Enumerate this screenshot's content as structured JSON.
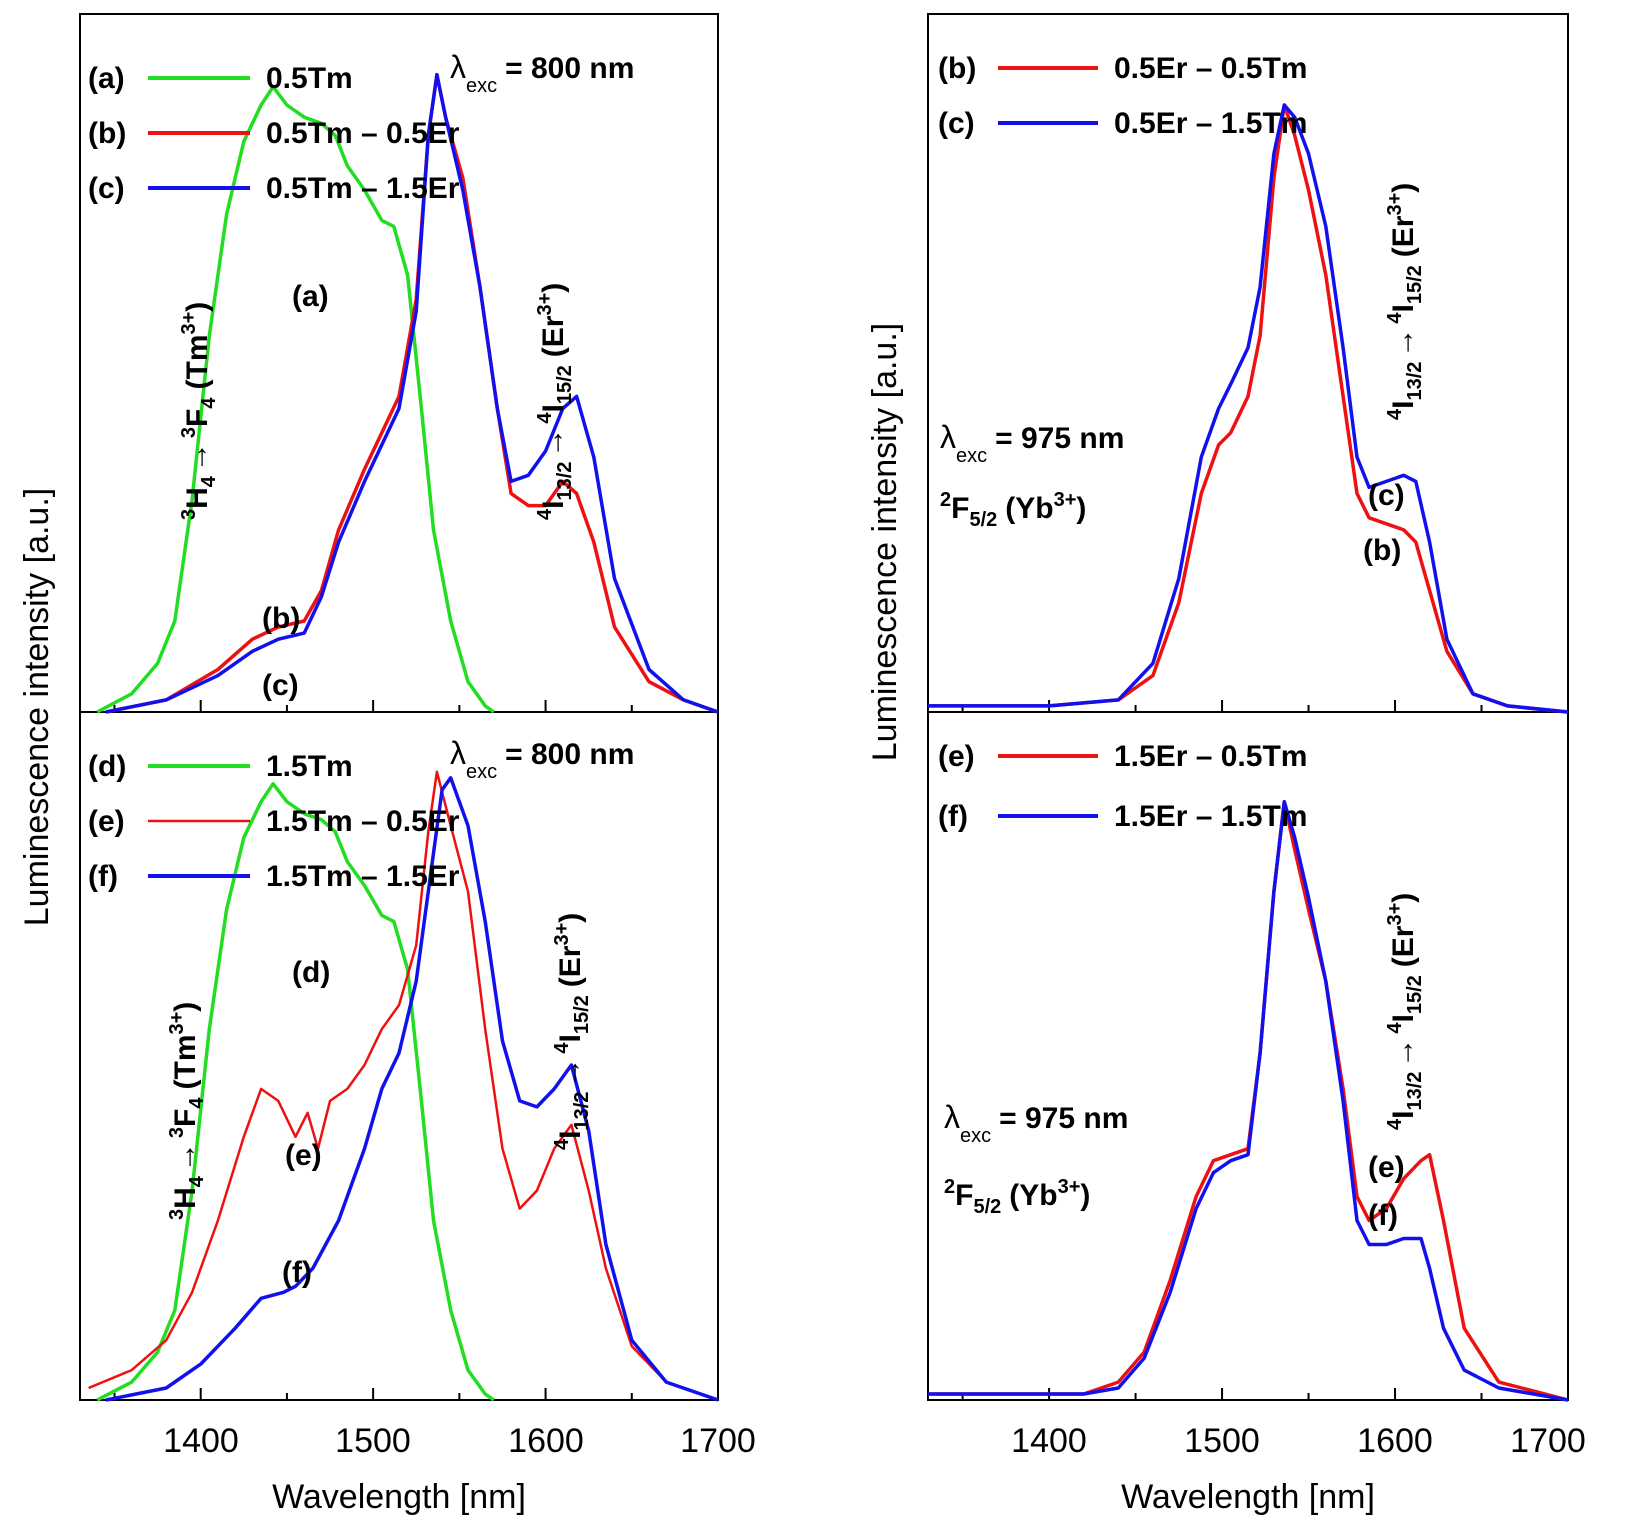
{
  "figure": {
    "ylabel": "Luminescence intensity [a.u.]",
    "xlabel": "Wavelength [nm]",
    "xticks": [
      "1400",
      "1500",
      "1600",
      "1700"
    ]
  },
  "colors": {
    "green": "#22dd22",
    "red": "#ee1111",
    "blue": "#1111ee"
  },
  "chart_data": [
    {
      "id": "A",
      "type": "line",
      "xlim": [
        1330,
        1700
      ],
      "ylim": [
        0,
        1.15
      ],
      "excitation": {
        "label": "λ",
        "sub": "exc",
        "value": "=  800 nm"
      },
      "legend": [
        {
          "tag": "(a)",
          "name": "0.5Tm",
          "color": "green"
        },
        {
          "tag": "(b)",
          "name": "0.5Tm – 0.5Er",
          "color": "red"
        },
        {
          "tag": "(c)",
          "name": "0.5Tm – 1.5Er",
          "color": "blue"
        }
      ],
      "series": [
        {
          "name": "0.5Tm",
          "color": "green",
          "x": [
            1340,
            1360,
            1375,
            1385,
            1395,
            1405,
            1415,
            1425,
            1435,
            1442,
            1450,
            1460,
            1470,
            1478,
            1485,
            1495,
            1505,
            1512,
            1520,
            1528,
            1535,
            1545,
            1555,
            1565,
            1570
          ],
          "y": [
            0,
            0.03,
            0.08,
            0.15,
            0.35,
            0.62,
            0.82,
            0.94,
            1.0,
            1.03,
            1.0,
            0.98,
            0.97,
            0.95,
            0.9,
            0.86,
            0.81,
            0.8,
            0.72,
            0.5,
            0.3,
            0.15,
            0.05,
            0.01,
            0
          ]
        },
        {
          "name": "0.5Tm – 0.5Er",
          "color": "red",
          "x": [
            1345,
            1380,
            1410,
            1430,
            1445,
            1460,
            1470,
            1480,
            1495,
            1505,
            1515,
            1525,
            1532,
            1537,
            1542,
            1552,
            1562,
            1572,
            1580,
            1590,
            1600,
            1610,
            1618,
            1628,
            1640,
            1660,
            1680,
            1700
          ],
          "y": [
            0,
            0.02,
            0.07,
            0.12,
            0.14,
            0.15,
            0.2,
            0.3,
            0.4,
            0.46,
            0.52,
            0.68,
            0.95,
            1.05,
            0.98,
            0.88,
            0.7,
            0.5,
            0.36,
            0.34,
            0.34,
            0.38,
            0.36,
            0.28,
            0.14,
            0.05,
            0.02,
            0
          ]
        },
        {
          "name": "0.5Tm – 1.5Er",
          "color": "blue",
          "x": [
            1345,
            1380,
            1410,
            1430,
            1445,
            1460,
            1470,
            1480,
            1495,
            1505,
            1515,
            1525,
            1532,
            1537,
            1542,
            1552,
            1562,
            1572,
            1580,
            1590,
            1600,
            1610,
            1618,
            1628,
            1640,
            1660,
            1680,
            1700
          ],
          "y": [
            0,
            0.02,
            0.06,
            0.1,
            0.12,
            0.13,
            0.19,
            0.28,
            0.38,
            0.44,
            0.5,
            0.66,
            0.95,
            1.05,
            0.98,
            0.86,
            0.7,
            0.5,
            0.38,
            0.39,
            0.43,
            0.5,
            0.52,
            0.42,
            0.22,
            0.07,
            0.02,
            0
          ]
        }
      ],
      "annotations": {
        "curve_a": "(a)",
        "curve_b": "(b)",
        "curve_c": "(c)",
        "tm_transition": {
          "upper": "H",
          "upper_pre": "3",
          "upper_sub": "4",
          "lower": "F",
          "lower_pre": "3",
          "lower_sub": "4",
          "ion": "(Tm",
          "ion_sup": "3+",
          "close": ")"
        },
        "er_transition": {
          "upper": "I",
          "upper_pre": "4",
          "upper_sub": "13/2",
          "lower": "I",
          "lower_pre": "4",
          "lower_sub": "15/2",
          "ion": "(Er",
          "ion_sup": "3+",
          "close": ")"
        }
      }
    },
    {
      "id": "B",
      "type": "line",
      "xlim": [
        1330,
        1700
      ],
      "ylim": [
        0,
        1.15
      ],
      "excitation": {
        "label": "λ",
        "sub": "exc",
        "value": "=  800 nm"
      },
      "legend": [
        {
          "tag": "(d)",
          "name": "1.5Tm",
          "color": "green"
        },
        {
          "tag": "(e)",
          "name": "1.5Tm – 0.5Er",
          "color": "red"
        },
        {
          "tag": "(f)",
          "name": "1.5Tm – 1.5Er",
          "color": "blue"
        }
      ],
      "series": [
        {
          "name": "1.5Tm",
          "color": "green",
          "x": [
            1340,
            1360,
            1375,
            1385,
            1395,
            1405,
            1415,
            1425,
            1435,
            1442,
            1450,
            1460,
            1470,
            1478,
            1485,
            1495,
            1505,
            1512,
            1520,
            1528,
            1535,
            1545,
            1555,
            1565,
            1570
          ],
          "y": [
            0,
            0.03,
            0.08,
            0.15,
            0.35,
            0.62,
            0.82,
            0.94,
            1.0,
            1.03,
            1.0,
            0.98,
            0.97,
            0.95,
            0.9,
            0.86,
            0.81,
            0.8,
            0.72,
            0.5,
            0.3,
            0.15,
            0.05,
            0.01,
            0
          ]
        },
        {
          "name": "1.5Tm – 0.5Er",
          "color": "red",
          "x": [
            1335,
            1360,
            1380,
            1395,
            1410,
            1425,
            1435,
            1445,
            1455,
            1462,
            1468,
            1475,
            1485,
            1495,
            1505,
            1515,
            1525,
            1532,
            1537,
            1545,
            1555,
            1565,
            1575,
            1585,
            1595,
            1605,
            1615,
            1625,
            1635,
            1650,
            1670,
            1700
          ],
          "y": [
            0.02,
            0.05,
            0.1,
            0.18,
            0.3,
            0.44,
            0.52,
            0.5,
            0.44,
            0.48,
            0.42,
            0.5,
            0.52,
            0.56,
            0.62,
            0.66,
            0.76,
            0.95,
            1.05,
            0.96,
            0.85,
            0.62,
            0.42,
            0.32,
            0.35,
            0.42,
            0.46,
            0.35,
            0.22,
            0.09,
            0.03,
            0
          ]
        },
        {
          "name": "1.5Tm – 1.5Er",
          "color": "blue",
          "x": [
            1345,
            1380,
            1400,
            1420,
            1435,
            1448,
            1455,
            1465,
            1480,
            1495,
            1505,
            1515,
            1525,
            1532,
            1540,
            1545,
            1555,
            1565,
            1575,
            1585,
            1595,
            1605,
            1615,
            1625,
            1635,
            1650,
            1670,
            1700
          ],
          "y": [
            0,
            0.02,
            0.06,
            0.12,
            0.17,
            0.18,
            0.19,
            0.22,
            0.3,
            0.42,
            0.52,
            0.58,
            0.7,
            0.85,
            1.02,
            1.04,
            0.96,
            0.8,
            0.6,
            0.5,
            0.49,
            0.52,
            0.56,
            0.45,
            0.26,
            0.1,
            0.03,
            0
          ]
        }
      ],
      "annotations": {
        "curve_d": "(d)",
        "curve_e": "(e)",
        "curve_f": "(f)",
        "tm_transition": {
          "upper": "H",
          "upper_pre": "3",
          "upper_sub": "4",
          "lower": "F",
          "lower_pre": "3",
          "lower_sub": "4",
          "ion": "(Tm",
          "ion_sup": "3+",
          "close": ")"
        },
        "er_transition": {
          "upper": "I",
          "upper_pre": "4",
          "upper_sub": "13/2",
          "lower": "I",
          "lower_pre": "4",
          "lower_sub": "15/2",
          "ion": "(Er",
          "ion_sup": "3+",
          "close": ")"
        }
      }
    },
    {
      "id": "C",
      "type": "line",
      "xlim": [
        1330,
        1700
      ],
      "ylim": [
        0,
        1.15
      ],
      "excitation": {
        "label": "λ",
        "sub": "exc",
        "value": "=  975 nm"
      },
      "yb_level": {
        "pre": "2",
        "letter": "F",
        "sub": "5/2",
        "ion": "(Yb",
        "ion_sup": "3+",
        "close": ")"
      },
      "legend": [
        {
          "tag": "(b)",
          "name": "0.5Er – 0.5Tm",
          "color": "red"
        },
        {
          "tag": "(c)",
          "name": "0.5Er – 1.5Tm",
          "color": "blue"
        }
      ],
      "series": [
        {
          "name": "0.5Er – 0.5Tm",
          "color": "red",
          "x": [
            1330,
            1400,
            1440,
            1460,
            1475,
            1488,
            1498,
            1505,
            1515,
            1522,
            1530,
            1536,
            1542,
            1550,
            1560,
            1570,
            1578,
            1585,
            1595,
            1605,
            1612,
            1620,
            1630,
            1645,
            1665,
            1700
          ],
          "y": [
            0.01,
            0.01,
            0.02,
            0.06,
            0.18,
            0.36,
            0.44,
            0.46,
            0.52,
            0.62,
            0.88,
            1.0,
            0.95,
            0.86,
            0.72,
            0.52,
            0.36,
            0.32,
            0.31,
            0.3,
            0.28,
            0.2,
            0.1,
            0.03,
            0.01,
            0
          ]
        },
        {
          "name": "0.5Er – 1.5Tm",
          "color": "blue",
          "x": [
            1330,
            1400,
            1440,
            1460,
            1475,
            1488,
            1498,
            1505,
            1515,
            1522,
            1530,
            1536,
            1542,
            1550,
            1560,
            1570,
            1578,
            1585,
            1595,
            1605,
            1612,
            1620,
            1630,
            1645,
            1665,
            1700
          ],
          "y": [
            0.01,
            0.01,
            0.02,
            0.08,
            0.22,
            0.42,
            0.5,
            0.54,
            0.6,
            0.7,
            0.92,
            1.0,
            0.98,
            0.92,
            0.8,
            0.6,
            0.42,
            0.37,
            0.38,
            0.39,
            0.38,
            0.28,
            0.12,
            0.03,
            0.01,
            0
          ]
        }
      ],
      "annotations": {
        "curve_b": "(b)",
        "curve_c": "(c)",
        "er_transition": {
          "upper": "I",
          "upper_pre": "4",
          "upper_sub": "13/2",
          "lower": "I",
          "lower_pre": "4",
          "lower_sub": "15/2",
          "ion": "(Er",
          "ion_sup": "3+",
          "close": ")"
        }
      }
    },
    {
      "id": "D",
      "type": "line",
      "xlim": [
        1330,
        1700
      ],
      "ylim": [
        0,
        1.15
      ],
      "excitation": {
        "label": "λ",
        "sub": "exc",
        "value": "=  975 nm"
      },
      "yb_level": {
        "pre": "2",
        "letter": "F",
        "sub": "5/2",
        "ion": "(Yb",
        "ion_sup": "3+",
        "close": ")"
      },
      "legend": [
        {
          "tag": "(e)",
          "name": "1.5Er – 0.5Tm",
          "color": "red"
        },
        {
          "tag": "(f)",
          "name": "1.5Er – 1.5Tm",
          "color": "blue"
        }
      ],
      "series": [
        {
          "name": "1.5Er – 0.5Tm",
          "color": "red",
          "x": [
            1330,
            1420,
            1440,
            1455,
            1470,
            1485,
            1495,
            1505,
            1515,
            1522,
            1530,
            1536,
            1542,
            1550,
            1560,
            1570,
            1578,
            1585,
            1595,
            1605,
            1615,
            1620,
            1628,
            1640,
            1660,
            1700
          ],
          "y": [
            0.01,
            0.01,
            0.03,
            0.08,
            0.2,
            0.34,
            0.4,
            0.41,
            0.42,
            0.58,
            0.85,
            1.0,
            0.92,
            0.82,
            0.7,
            0.52,
            0.34,
            0.3,
            0.32,
            0.37,
            0.4,
            0.41,
            0.3,
            0.12,
            0.03,
            0
          ]
        },
        {
          "name": "1.5Er – 1.5Tm",
          "color": "blue",
          "x": [
            1330,
            1420,
            1440,
            1455,
            1470,
            1485,
            1495,
            1505,
            1515,
            1522,
            1530,
            1536,
            1542,
            1550,
            1560,
            1570,
            1578,
            1585,
            1595,
            1605,
            1615,
            1620,
            1628,
            1640,
            1660,
            1700
          ],
          "y": [
            0.01,
            0.01,
            0.02,
            0.07,
            0.18,
            0.32,
            0.38,
            0.4,
            0.41,
            0.58,
            0.85,
            1.0,
            0.94,
            0.84,
            0.7,
            0.5,
            0.3,
            0.26,
            0.26,
            0.27,
            0.27,
            0.22,
            0.12,
            0.05,
            0.02,
            0
          ]
        }
      ],
      "annotations": {
        "curve_e": "(e)",
        "curve_f": "(f)",
        "er_transition": {
          "upper": "I",
          "upper_pre": "4",
          "upper_sub": "13/2",
          "lower": "I",
          "lower_pre": "4",
          "lower_sub": "15/2",
          "ion": "(Er",
          "ion_sup": "3+",
          "close": ")"
        }
      }
    }
  ]
}
